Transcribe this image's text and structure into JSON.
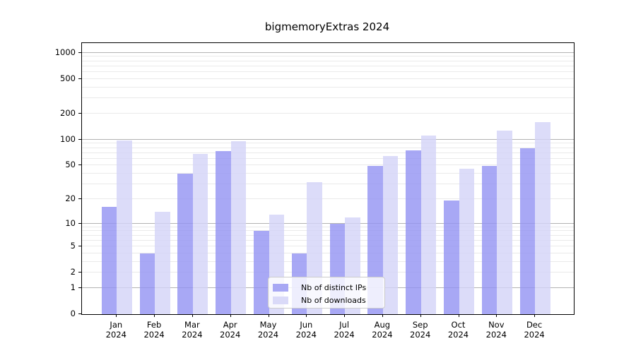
{
  "figure": {
    "title": "bigmemoryExtras 2024"
  },
  "chart_data": {
    "type": "bar",
    "title": "bigmemoryExtras 2024",
    "categories": [
      {
        "line1": "Jan",
        "line2": "2024"
      },
      {
        "line1": "Feb",
        "line2": "2024"
      },
      {
        "line1": "Mar",
        "line2": "2024"
      },
      {
        "line1": "Apr",
        "line2": "2024"
      },
      {
        "line1": "May",
        "line2": "2024"
      },
      {
        "line1": "Jun",
        "line2": "2024"
      },
      {
        "line1": "Jul",
        "line2": "2024"
      },
      {
        "line1": "Aug",
        "line2": "2024"
      },
      {
        "line1": "Sep",
        "line2": "2024"
      },
      {
        "line1": "Oct",
        "line2": "2024"
      },
      {
        "line1": "Nov",
        "line2": "2024"
      },
      {
        "line1": "Dec",
        "line2": "2024"
      }
    ],
    "series": [
      {
        "name": "Nb of distinct IPs",
        "color": "rgba(146,146,243,0.8)",
        "legend_color": "#a8a8f4",
        "values": [
          16,
          4,
          40,
          73,
          8,
          4,
          10,
          49,
          75,
          19,
          49,
          80
        ]
      },
      {
        "name": "Nb of downloads",
        "color": "rgba(211,211,248,0.8)",
        "legend_color": "#dadaf8",
        "values": [
          97,
          14,
          68,
          95,
          13,
          32,
          12,
          65,
          111,
          46,
          126,
          160
        ]
      }
    ],
    "xlabel": "",
    "ylabel": "",
    "yscale": "log1p",
    "ylim": [
      0,
      1292
    ],
    "yticks": [
      0,
      1,
      2,
      5,
      10,
      20,
      50,
      100,
      200,
      500,
      1000
    ],
    "gridlines_major": [
      1,
      10,
      100,
      1000
    ],
    "gridlines_minor": [
      2,
      3,
      4,
      5,
      6,
      7,
      8,
      9,
      20,
      30,
      40,
      50,
      60,
      70,
      80,
      90,
      200,
      300,
      400,
      500,
      600,
      700,
      800,
      900
    ],
    "grid_color_major": "#b3b3b3",
    "grid_color_minor": "#eaeaea",
    "legend_position": "lower center",
    "legend_visible": true,
    "grid": "on"
  }
}
